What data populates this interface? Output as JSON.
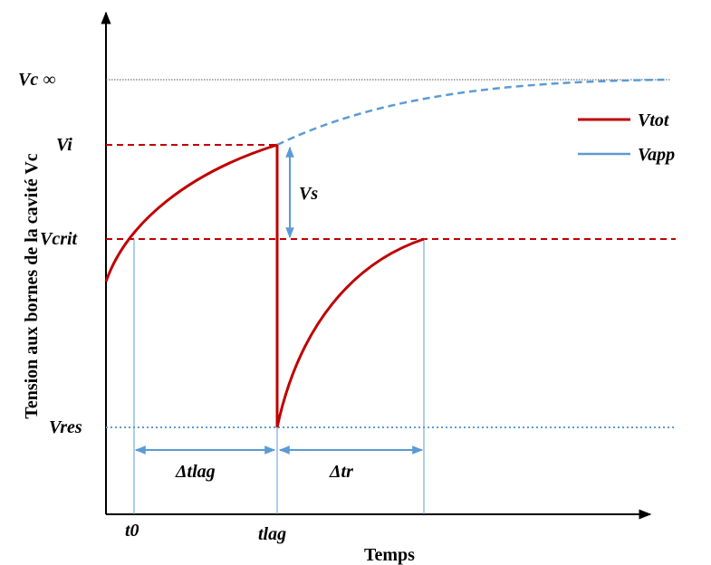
{
  "axes": {
    "x_label": "Temps",
    "y_label": "Tension aux bornes de la cavité Vc"
  },
  "levels": {
    "vc_inf": "Vc ∞",
    "vi": "Vi",
    "vcrit": "Vcrit",
    "vres": "Vres"
  },
  "times": {
    "t0": "t0",
    "tlag": "tlag"
  },
  "annotations": {
    "vs": "Vs",
    "dtlag": "Δtlag",
    "dtr": "Δtr"
  },
  "legend": [
    {
      "label": "Vtot",
      "color": "#c00000"
    },
    {
      "label": "Vapp",
      "color": "#5b9bd5"
    }
  ],
  "colors": {
    "red": "#c00000",
    "blue": "#5b9bd5",
    "axis": "#000000"
  }
}
